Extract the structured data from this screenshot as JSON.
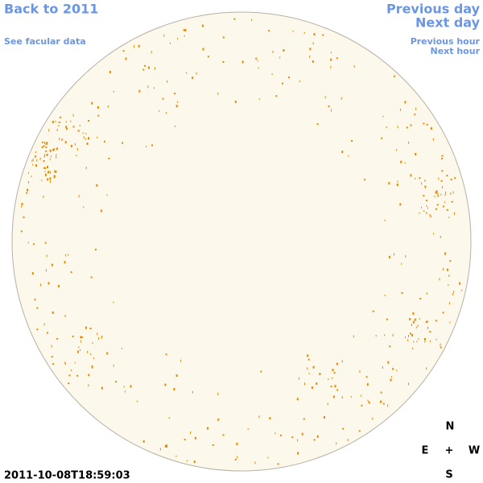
{
  "nav": {
    "back": "Back to 2011",
    "facular": "See facular data",
    "previous_day": "Previous day",
    "next_day": "Next day",
    "previous_hour": "Previous hour",
    "next_hour": "Next hour"
  },
  "timestamp": "2011-10-08T18:59:03",
  "compass": {
    "north": "N",
    "east": "E",
    "center": "+",
    "west": "W",
    "south": "S"
  }
}
